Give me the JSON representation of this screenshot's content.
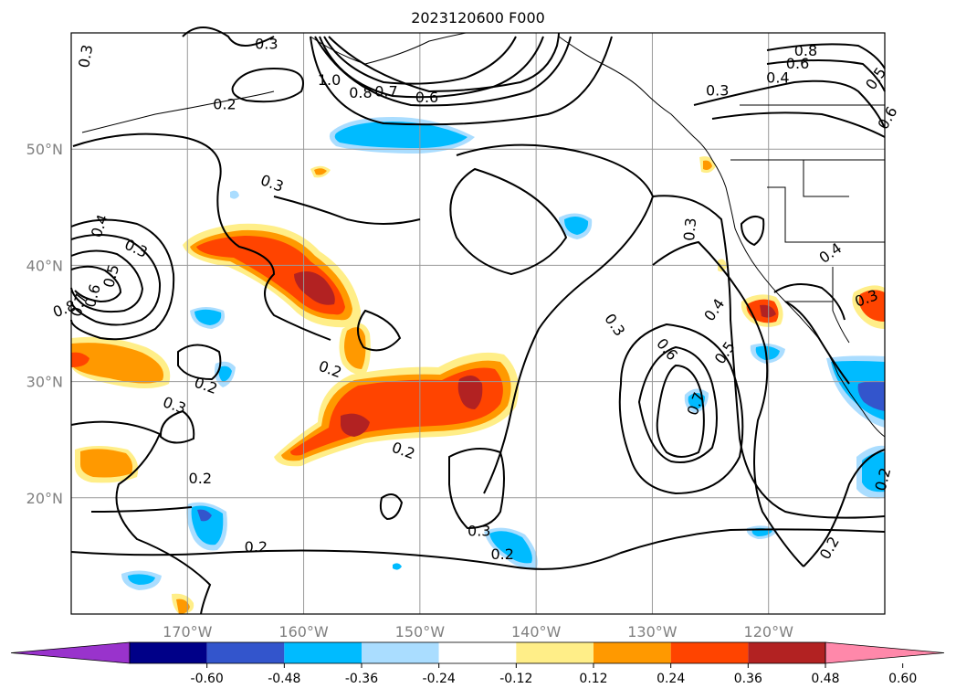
{
  "chart_data": {
    "type": "contour-map",
    "title": "2023120600 F000",
    "lon_range": [
      -180,
      -110
    ],
    "lat_range": [
      10,
      60
    ],
    "xticks": [
      {
        "lon": -170,
        "label": "170°W"
      },
      {
        "lon": -160,
        "label": "160°W"
      },
      {
        "lon": -150,
        "label": "150°W"
      },
      {
        "lon": -140,
        "label": "140°W"
      },
      {
        "lon": -130,
        "label": "130°W"
      },
      {
        "lon": -120,
        "label": "120°W"
      }
    ],
    "yticks": [
      {
        "lat": 20,
        "label": "20°N"
      },
      {
        "lat": 30,
        "label": "30°N"
      },
      {
        "lat": 40,
        "label": "40°N"
      },
      {
        "lat": 50,
        "label": "50°N"
      }
    ],
    "grid": true,
    "colorbar": {
      "orientation": "horizontal",
      "placement": "bottom",
      "extend": "both",
      "boundaries": [
        -0.72,
        -0.6,
        -0.48,
        -0.36,
        -0.24,
        -0.12,
        0.12,
        0.24,
        0.36,
        0.48,
        0.6,
        0.72
      ],
      "tick_labels": [
        "-0.60",
        "-0.48",
        "-0.36",
        "-0.24",
        "-0.12",
        "0.12",
        "0.24",
        "0.36",
        "0.48",
        "0.60"
      ],
      "colors": [
        "#9933cc",
        "#000088",
        "#3355cc",
        "#00bbff",
        "#aaddff",
        "#ffffff",
        "#ffee88",
        "#ff9900",
        "#ff4400",
        "#b22222",
        "#ff88aa"
      ]
    },
    "contour_labels": [
      {
        "text": "0.3",
        "lon": -178.8,
        "lat": 58.0,
        "rot": -80
      },
      {
        "text": "0.3",
        "lon": -163.2,
        "lat": 59.1,
        "rot": 0
      },
      {
        "text": "0.2",
        "lon": -166.8,
        "lat": 53.9,
        "rot": 0
      },
      {
        "text": "1.0",
        "lon": -157.8,
        "lat": 56.0,
        "rot": 0
      },
      {
        "text": "0.8",
        "lon": -155.1,
        "lat": 54.9,
        "rot": 0
      },
      {
        "text": "0.7",
        "lon": -152.9,
        "lat": 55.0,
        "rot": 0
      },
      {
        "text": "0.6",
        "lon": -149.4,
        "lat": 54.5,
        "rot": 0
      },
      {
        "text": "0.8",
        "lon": -116.8,
        "lat": 58.5,
        "rot": 0
      },
      {
        "text": "0.6",
        "lon": -117.5,
        "lat": 57.4,
        "rot": 0
      },
      {
        "text": "0.4",
        "lon": -119.2,
        "lat": 56.2,
        "rot": 0
      },
      {
        "text": "0.5",
        "lon": -110.8,
        "lat": 56.1,
        "rot": -55
      },
      {
        "text": "0.3",
        "lon": -124.4,
        "lat": 55.1,
        "rot": 0
      },
      {
        "text": "0.6",
        "lon": -109.8,
        "lat": 52.7,
        "rot": -60
      },
      {
        "text": "0.3",
        "lon": -162.7,
        "lat": 47.1,
        "rot": 20
      },
      {
        "text": "0.4",
        "lon": -177.6,
        "lat": 43.4,
        "rot": -70
      },
      {
        "text": "0.3",
        "lon": -174.4,
        "lat": 41.5,
        "rot": 25
      },
      {
        "text": "0.5",
        "lon": -176.6,
        "lat": 39.1,
        "rot": -75
      },
      {
        "text": "0.6",
        "lon": -178.2,
        "lat": 37.4,
        "rot": -75
      },
      {
        "text": "0.7",
        "lon": -179.4,
        "lat": 36.6,
        "rot": -75
      },
      {
        "text": "0.8",
        "lon": -180.6,
        "lat": 36.3,
        "rot": -20
      },
      {
        "text": "0.3",
        "lon": -126.8,
        "lat": 43.1,
        "rot": -85
      },
      {
        "text": "0.4",
        "lon": -114.7,
        "lat": 41.1,
        "rot": -35
      },
      {
        "text": "0.3",
        "lon": -111.6,
        "lat": 37.2,
        "rot": -20
      },
      {
        "text": "0.4",
        "lon": -124.7,
        "lat": 36.2,
        "rot": -55
      },
      {
        "text": "0.5",
        "lon": -123.8,
        "lat": 32.5,
        "rot": -55
      },
      {
        "text": "0.3",
        "lon": -133.2,
        "lat": 34.9,
        "rot": 55
      },
      {
        "text": "0.6",
        "lon": -128.7,
        "lat": 32.8,
        "rot": 50
      },
      {
        "text": "0.7",
        "lon": -126.3,
        "lat": 28.1,
        "rot": -70
      },
      {
        "text": "0.2",
        "lon": -157.7,
        "lat": 31.1,
        "rot": 20
      },
      {
        "text": "0.2",
        "lon": -168.4,
        "lat": 29.7,
        "rot": 20
      },
      {
        "text": "0.3",
        "lon": -171.1,
        "lat": 28.0,
        "rot": 20
      },
      {
        "text": "0.2",
        "lon": -151.4,
        "lat": 24.1,
        "rot": 20
      },
      {
        "text": "0.2",
        "lon": -168.9,
        "lat": 21.7,
        "rot": 0
      },
      {
        "text": "0.2",
        "lon": -164.1,
        "lat": 15.8,
        "rot": 0
      },
      {
        "text": "0.3",
        "lon": -144.9,
        "lat": 17.2,
        "rot": 0
      },
      {
        "text": "0.2",
        "lon": -142.9,
        "lat": 15.2,
        "rot": 0
      },
      {
        "text": "0.2",
        "lon": -114.8,
        "lat": 15.7,
        "rot": -60
      },
      {
        "text": "0.2",
        "lon": -110.2,
        "lat": 21.6,
        "rot": -75
      }
    ]
  }
}
